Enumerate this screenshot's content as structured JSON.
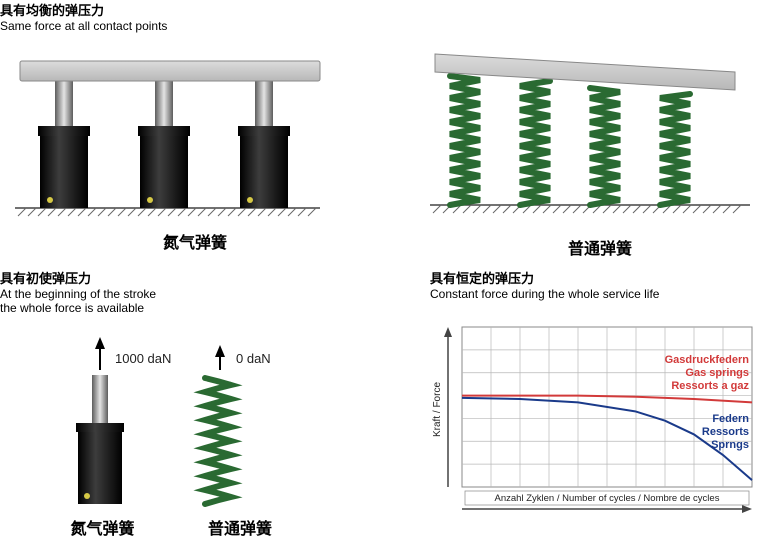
{
  "section1": {
    "title_cn": "具有均衡的弹压力",
    "title_en": "Same force at all contact points",
    "caption_left": "氮气弹簧",
    "caption_right": "普通弹簧",
    "title_fontsize": 13,
    "caption_fontsize": 13,
    "gas_spring": {
      "body_color": "#141414",
      "rod_color_light": "#c8c8c8",
      "rod_color_dark": "#5c5c5c",
      "dot_color": "#d6c946",
      "count": 3
    },
    "coil_spring": {
      "color": "#2a6a32",
      "count": 4
    },
    "plate_color": "#cfcfcf",
    "ground_hatch_color": "#666"
  },
  "section2": {
    "title_cn": "具有初使弹压力",
    "title_en_line1": "At the beginning of the stroke",
    "title_en_line2": "the whole force is available",
    "force_gas": "1000 daN",
    "force_coil": "0 daN",
    "caption_gas": "氮气弹簧",
    "caption_coil": "普通弹簧"
  },
  "section3": {
    "title_cn": "具有恒定的弹压力",
    "title_en": "Constant force during the whole service life",
    "chart": {
      "type": "line",
      "y_label": "Kraft / Force",
      "x_label": "Anzahl Zyklen / Number of cycles / Nombre de cycles",
      "grid_color": "#b8b8b8",
      "bg_color": "#ffffff",
      "border_color": "#888",
      "xlim": [
        0,
        10
      ],
      "ylim": [
        0,
        7
      ],
      "xtick_step": 1,
      "ytick_step": 1,
      "series": [
        {
          "name_lines": [
            "Gasdruckfedern",
            "Gas springs",
            "Ressorts a gaz"
          ],
          "color": "#d23a3a",
          "label_color": "#d23a3a",
          "line_width": 2,
          "points": [
            [
              0,
              4.0
            ],
            [
              2,
              4.0
            ],
            [
              4,
              4.0
            ],
            [
              6,
              3.95
            ],
            [
              8,
              3.85
            ],
            [
              10,
              3.7
            ]
          ]
        },
        {
          "name_lines": [
            "Federn",
            "Ressorts",
            "Sprngs"
          ],
          "color": "#1a3a8a",
          "label_color": "#1a3a8a",
          "line_width": 2,
          "points": [
            [
              0,
              3.9
            ],
            [
              2,
              3.85
            ],
            [
              4,
              3.7
            ],
            [
              6,
              3.3
            ],
            [
              7,
              2.9
            ],
            [
              8,
              2.3
            ],
            [
              9,
              1.4
            ],
            [
              10,
              0.3
            ]
          ]
        }
      ],
      "axis_color": "#444",
      "label_fontsize": 10,
      "series_label_fontsize": 11
    }
  }
}
